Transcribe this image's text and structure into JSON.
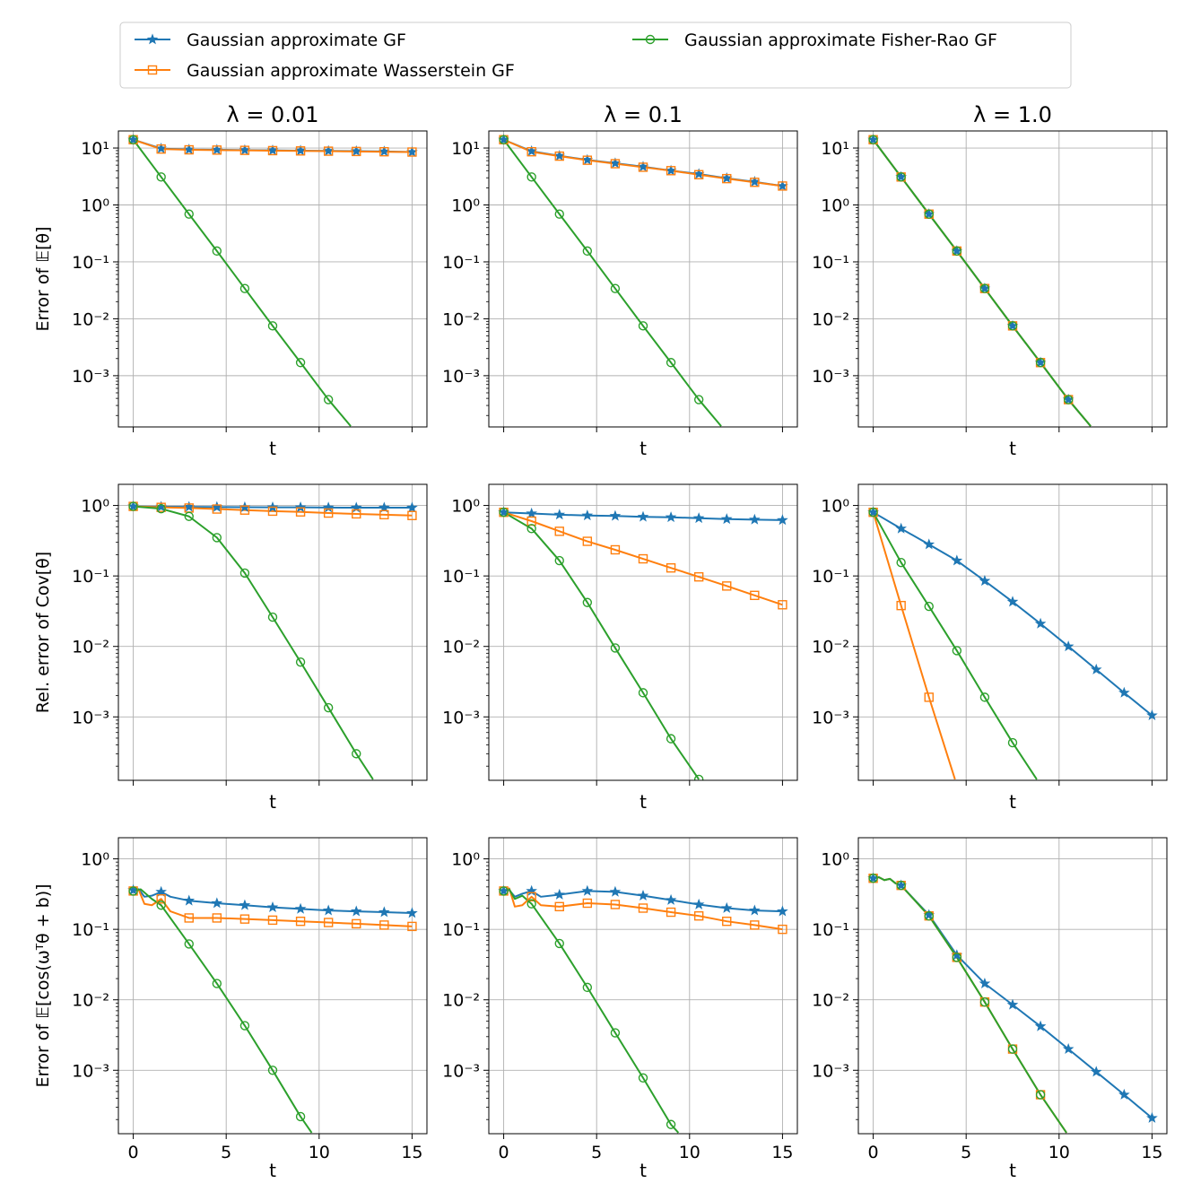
{
  "legend": {
    "entries": [
      {
        "key": "gf",
        "label": "Gaussian approximate GF",
        "color": "#1f77b4",
        "marker": "star"
      },
      {
        "key": "wgf",
        "label": "Gaussian approximate Wasserstein GF",
        "color": "#ff7f0e",
        "marker": "square"
      },
      {
        "key": "frgf",
        "label": "Gaussian approximate Fisher-Rao GF",
        "color": "#2ca02c",
        "marker": "circle"
      }
    ]
  },
  "columns": [
    {
      "title": "λ = 0.01"
    },
    {
      "title": "λ = 0.1"
    },
    {
      "title": "λ = 1.0"
    }
  ],
  "rows": [
    {
      "ylabel": "Error of 𝔼[θ]",
      "ylim_log10": [
        -3.9,
        1.3
      ],
      "ticks": [
        1,
        0,
        -1,
        -2,
        -3
      ]
    },
    {
      "ylabel": "Rel. error of Cov[θ]",
      "ylim_log10": [
        -3.9,
        0.3
      ],
      "ticks": [
        0,
        -1,
        -2,
        -3
      ]
    },
    {
      "ylabel": "Error of 𝔼[cos(ωᵀθ + b)]",
      "ylim_log10": [
        -3.9,
        0.3
      ],
      "ticks": [
        0,
        -1,
        -2,
        -3
      ]
    }
  ],
  "tick_labels": {
    "1": "10¹",
    "0": "10⁰",
    "-1": "10⁻¹",
    "-2": "10⁻²",
    "-3": "10⁻³"
  },
  "xaxis": {
    "label": "t",
    "xlim": [
      -0.8,
      15.8
    ],
    "ticks": [
      0,
      5,
      10,
      15
    ]
  },
  "chart_data": {
    "type": "line",
    "yscale": "log",
    "panels": [
      {
        "row": 0,
        "col": 0,
        "series": [
          {
            "key": "gf",
            "x": [
              0,
              1.5,
              3,
              4.5,
              6,
              7.5,
              9,
              10.5,
              12,
              13.5,
              15
            ],
            "y": [
              14,
              9.8,
              9.4,
              9.3,
              9.2,
              9.1,
              9.0,
              8.9,
              8.8,
              8.7,
              8.5
            ]
          },
          {
            "key": "wgf",
            "x": [
              0,
              1.5,
              3,
              4.5,
              6,
              7.5,
              9,
              10.5,
              12,
              13.5,
              15
            ],
            "y": [
              14,
              9.6,
              9.3,
              9.2,
              9.1,
              9.0,
              8.9,
              8.8,
              8.7,
              8.6,
              8.5
            ]
          },
          {
            "key": "frgf",
            "x": [
              0,
              1.5,
              3,
              4.5,
              6,
              7.5,
              9,
              10.5,
              11.7
            ],
            "y": [
              14,
              3.1,
              0.69,
              0.155,
              0.034,
              0.0075,
              0.0017,
              0.00038,
              0.00013
            ]
          }
        ]
      },
      {
        "row": 0,
        "col": 1,
        "series": [
          {
            "key": "gf",
            "x": [
              0,
              1.5,
              3,
              4.5,
              6,
              7.5,
              9,
              10.5,
              12,
              13.5,
              15
            ],
            "y": [
              14,
              8.8,
              7.3,
              6.2,
              5.4,
              4.7,
              4.0,
              3.5,
              2.95,
              2.55,
              2.15
            ]
          },
          {
            "key": "wgf",
            "x": [
              0,
              1.5,
              3,
              4.5,
              6,
              7.5,
              9,
              10.5,
              12,
              13.5,
              15
            ],
            "y": [
              14,
              8.6,
              7.2,
              6.1,
              5.3,
              4.6,
              4.0,
              3.4,
              2.9,
              2.5,
              2.15
            ]
          },
          {
            "key": "frgf",
            "x": [
              0,
              1.5,
              3,
              4.5,
              6,
              7.5,
              9,
              10.5,
              11.7
            ],
            "y": [
              14,
              3.1,
              0.69,
              0.155,
              0.034,
              0.0075,
              0.0017,
              0.00038,
              0.00013
            ]
          }
        ]
      },
      {
        "row": 0,
        "col": 2,
        "series": [
          {
            "key": "gf",
            "x": [
              0,
              1.5,
              3,
              4.5,
              6,
              7.5,
              9,
              10.5,
              11.7
            ],
            "y": [
              14,
              3.1,
              0.69,
              0.155,
              0.034,
              0.0075,
              0.0017,
              0.00038,
              0.00013
            ]
          },
          {
            "key": "wgf",
            "x": [
              0,
              1.5,
              3,
              4.5,
              6,
              7.5,
              9,
              10.5,
              11.7
            ],
            "y": [
              14,
              3.1,
              0.69,
              0.155,
              0.034,
              0.0075,
              0.0017,
              0.00038,
              0.00013
            ]
          },
          {
            "key": "frgf",
            "x": [
              0,
              1.5,
              3,
              4.5,
              6,
              7.5,
              9,
              10.5,
              11.7
            ],
            "y": [
              14,
              3.1,
              0.69,
              0.155,
              0.034,
              0.0075,
              0.0017,
              0.00038,
              0.00013
            ]
          }
        ]
      },
      {
        "row": 1,
        "col": 0,
        "series": [
          {
            "key": "gf",
            "x": [
              0,
              1.5,
              3,
              4.5,
              6,
              7.5,
              9,
              10.5,
              12,
              13.5,
              15
            ],
            "y": [
              0.97,
              0.96,
              0.955,
              0.95,
              0.945,
              0.94,
              0.94,
              0.935,
              0.93,
              0.93,
              0.93
            ]
          },
          {
            "key": "wgf",
            "x": [
              0,
              1.5,
              3,
              4.5,
              6,
              7.5,
              9,
              10.5,
              12,
              13.5,
              15
            ],
            "y": [
              0.97,
              0.94,
              0.92,
              0.89,
              0.86,
              0.83,
              0.81,
              0.78,
              0.76,
              0.74,
              0.72
            ]
          },
          {
            "key": "frgf",
            "x": [
              0,
              1.5,
              3,
              4.5,
              6,
              7.5,
              9,
              10.5,
              12,
              12.9
            ],
            "y": [
              0.97,
              0.9,
              0.7,
              0.35,
              0.11,
              0.026,
              0.006,
              0.00135,
              0.0003,
              0.00013
            ]
          }
        ]
      },
      {
        "row": 1,
        "col": 1,
        "series": [
          {
            "key": "gf",
            "x": [
              0,
              1.5,
              3,
              4.5,
              6,
              7.5,
              9,
              10.5,
              12,
              13.5,
              15
            ],
            "y": [
              0.8,
              0.77,
              0.74,
              0.72,
              0.71,
              0.69,
              0.68,
              0.66,
              0.64,
              0.63,
              0.62
            ]
          },
          {
            "key": "wgf",
            "x": [
              0,
              1.5,
              3,
              4.5,
              6,
              7.5,
              9,
              10.5,
              12,
              13.5,
              15
            ],
            "y": [
              0.8,
              0.6,
              0.43,
              0.31,
              0.235,
              0.175,
              0.13,
              0.097,
              0.072,
              0.053,
              0.039
            ]
          },
          {
            "key": "frgf",
            "x": [
              0,
              1.5,
              3,
              4.5,
              6,
              7.5,
              9,
              10.5
            ],
            "y": [
              0.8,
              0.47,
              0.165,
              0.042,
              0.0095,
              0.0022,
              0.00049,
              0.00013
            ]
          }
        ]
      },
      {
        "row": 1,
        "col": 2,
        "series": [
          {
            "key": "gf",
            "x": [
              0,
              1.5,
              3,
              4.5,
              6,
              7.5,
              9,
              10.5,
              12,
              13.5,
              15
            ],
            "y": [
              0.8,
              0.47,
              0.28,
              0.165,
              0.085,
              0.043,
              0.021,
              0.01,
              0.0047,
              0.0022,
              0.00105
            ]
          },
          {
            "key": "wgf",
            "x": [
              0,
              1.5,
              3,
              4.4
            ],
            "y": [
              0.8,
              0.038,
              0.0019,
              0.00013
            ]
          },
          {
            "key": "frgf",
            "x": [
              0,
              1.5,
              3,
              4.5,
              6,
              7.5,
              8.8
            ],
            "y": [
              0.8,
              0.155,
              0.037,
              0.0087,
              0.0019,
              0.00043,
              0.00013
            ]
          }
        ]
      },
      {
        "row": 2,
        "col": 0,
        "series": [
          {
            "key": "gf",
            "x": [
              0,
              0.3,
              0.6,
              1.0,
              1.5,
              2.0,
              3,
              4.5,
              6,
              7.5,
              9,
              10.5,
              12,
              13.5,
              15
            ],
            "y": [
              0.36,
              0.37,
              0.29,
              0.3,
              0.34,
              0.29,
              0.255,
              0.235,
              0.22,
              0.205,
              0.195,
              0.185,
              0.18,
              0.175,
              0.17
            ]
          },
          {
            "key": "wgf",
            "x": [
              0,
              0.3,
              0.6,
              1.0,
              1.5,
              2.0,
              3,
              4.5,
              6,
              7.5,
              9,
              10.5,
              12,
              13.5,
              15
            ],
            "y": [
              0.35,
              0.36,
              0.23,
              0.22,
              0.27,
              0.18,
              0.145,
              0.145,
              0.14,
              0.135,
              0.13,
              0.125,
              0.12,
              0.115,
              0.11
            ]
          },
          {
            "key": "frgf",
            "x": [
              0,
              0.4,
              1.0,
              1.5,
              3,
              4.5,
              6,
              7.5,
              9,
              9.6
            ],
            "y": [
              0.35,
              0.37,
              0.27,
              0.22,
              0.062,
              0.017,
              0.0043,
              0.001,
              0.00022,
              0.00013
            ]
          }
        ]
      },
      {
        "row": 2,
        "col": 1,
        "series": [
          {
            "key": "gf",
            "x": [
              0,
              0.3,
              0.6,
              1.0,
              1.5,
              2.0,
              3,
              4.5,
              6,
              7.5,
              9,
              10.5,
              12,
              13.5,
              15
            ],
            "y": [
              0.35,
              0.36,
              0.29,
              0.32,
              0.35,
              0.29,
              0.31,
              0.35,
              0.34,
              0.3,
              0.26,
              0.225,
              0.2,
              0.185,
              0.18
            ]
          },
          {
            "key": "wgf",
            "x": [
              0,
              0.3,
              0.6,
              1.0,
              1.5,
              2.0,
              3,
              4.5,
              6,
              7.5,
              9,
              10.5,
              12,
              13.5,
              15
            ],
            "y": [
              0.35,
              0.38,
              0.21,
              0.22,
              0.29,
              0.22,
              0.21,
              0.235,
              0.225,
              0.2,
              0.175,
              0.155,
              0.13,
              0.115,
              0.1
            ]
          },
          {
            "key": "frgf",
            "x": [
              0,
              0.3,
              0.6,
              1.0,
              1.5,
              3,
              4.5,
              6,
              7.5,
              9,
              9.4
            ],
            "y": [
              0.35,
              0.37,
              0.27,
              0.3,
              0.23,
              0.063,
              0.015,
              0.0034,
              0.00078,
              0.00017,
              0.00013
            ]
          }
        ]
      },
      {
        "row": 2,
        "col": 2,
        "series": [
          {
            "key": "gf",
            "x": [
              0,
              0.3,
              0.6,
              0.9,
              1.2,
              1.5,
              3,
              4.5,
              6,
              7.5,
              9,
              10.5,
              12,
              13.5,
              15
            ],
            "y": [
              0.53,
              0.55,
              0.5,
              0.52,
              0.45,
              0.42,
              0.16,
              0.043,
              0.017,
              0.0085,
              0.0042,
              0.002,
              0.00095,
              0.00045,
              0.00021
            ]
          },
          {
            "key": "wgf",
            "x": [
              0,
              0.3,
              0.6,
              0.9,
              1.2,
              1.5,
              3,
              4.5,
              6,
              7.5,
              9,
              10.4
            ],
            "y": [
              0.53,
              0.55,
              0.5,
              0.52,
              0.45,
              0.42,
              0.155,
              0.04,
              0.0093,
              0.002,
              0.00045,
              0.00013
            ]
          },
          {
            "key": "frgf",
            "x": [
              0,
              0.3,
              0.6,
              0.9,
              1.2,
              1.5,
              3,
              4.5,
              6,
              7.5,
              9,
              10.4
            ],
            "y": [
              0.53,
              0.55,
              0.5,
              0.52,
              0.45,
              0.42,
              0.155,
              0.04,
              0.0093,
              0.002,
              0.00045,
              0.00013
            ]
          }
        ]
      }
    ]
  }
}
